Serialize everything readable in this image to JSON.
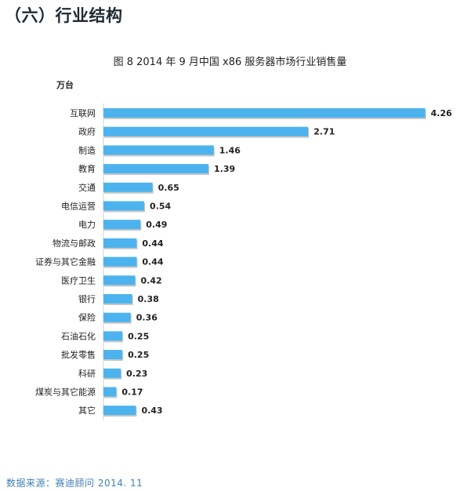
{
  "page": {
    "section_heading": "（六）行业结构",
    "source_note": "数据来源：赛迪顾问 2014. 11"
  },
  "chart_data": {
    "type": "bar",
    "orientation": "horizontal",
    "title": "图 8    2014 年 9 月中国 x86 服务器市场行业销售量",
    "unit": "万台",
    "categories": [
      "互联网",
      "政府",
      "制造",
      "教育",
      "交通",
      "电信运营",
      "电力",
      "物流与邮政",
      "证券与其它金融",
      "医疗卫生",
      "银行",
      "保险",
      "石油石化",
      "批发零售",
      "科研",
      "煤炭与其它能源",
      "其它"
    ],
    "values": [
      4.26,
      2.71,
      1.46,
      1.39,
      0.65,
      0.54,
      0.49,
      0.44,
      0.44,
      0.42,
      0.38,
      0.36,
      0.25,
      0.25,
      0.23,
      0.17,
      0.43
    ],
    "value_labels": [
      "4.26",
      "2.71",
      "1.46",
      "1.39",
      "0.65",
      "0.54",
      "0.49",
      "0.44",
      "0.44",
      "0.42",
      "0.38",
      "0.36",
      "0.25",
      "0.25",
      "0.23",
      "0.17",
      "0.43"
    ],
    "bar_color": "#4db3ee",
    "grid": false,
    "legend": false
  }
}
